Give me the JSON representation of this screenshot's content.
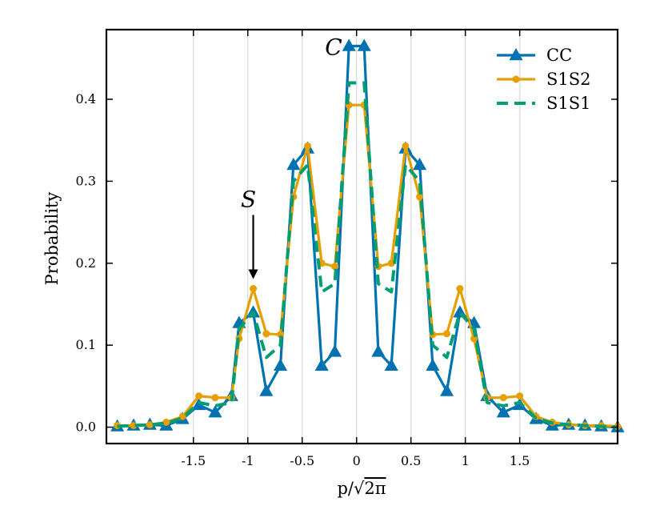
{
  "chart_data": {
    "type": "line",
    "title": "",
    "xlabel_parts": {
      "pre": "p/",
      "sqrt": "√",
      "radicand": "2π"
    },
    "ylabel": "Probability",
    "xlim": [
      -2.3,
      2.4
    ],
    "ylim": [
      -0.02,
      0.485
    ],
    "xticks": [
      -1.5,
      -1,
      -0.5,
      0,
      0.5,
      1,
      1.5
    ],
    "xtick_labels": [
      "-1.5",
      "-1",
      "-0.5",
      "0",
      "0.5",
      "1",
      "1.5"
    ],
    "yticks": [
      0.0,
      0.1,
      0.2,
      0.3,
      0.4
    ],
    "ytick_labels": [
      "0.0",
      "0.1",
      "0.2",
      "0.3",
      "0.4"
    ],
    "grid": "vertical-only",
    "legend_position": "top-right",
    "x": [
      -2.2,
      -2.05,
      -1.9,
      -1.75,
      -1.6,
      -1.45,
      -1.3,
      -1.15,
      -1.0,
      -0.95,
      -0.83,
      -0.7,
      -0.58,
      -0.45,
      -0.32,
      -0.2,
      -0.07,
      0.0,
      0.07,
      0.2,
      0.32,
      0.45,
      0.58,
      0.7,
      0.83,
      0.95,
      1.08,
      1.2,
      1.35,
      1.5,
      1.65,
      1.8,
      1.95,
      2.1,
      2.25,
      2.4
    ],
    "series": [
      {
        "name": "CC",
        "color": "#0072b2",
        "marker": "triangle",
        "dash": "solid",
        "x": [
          -2.2,
          -2.05,
          -1.9,
          -1.75,
          -1.6,
          -1.45,
          -1.3,
          -1.15,
          -1.08,
          -0.95,
          -0.83,
          -0.7,
          -0.58,
          -0.45,
          -0.32,
          -0.2,
          -0.07,
          0.07,
          0.2,
          0.32,
          0.45,
          0.58,
          0.7,
          0.83,
          0.95,
          1.08,
          1.2,
          1.35,
          1.5,
          1.65,
          1.8,
          1.95,
          2.1,
          2.25,
          2.4
        ],
        "values": [
          0.001,
          0.002,
          0.003,
          0.002,
          0.01,
          0.027,
          0.018,
          0.038,
          0.127,
          0.14,
          0.044,
          0.075,
          0.32,
          0.34,
          0.075,
          0.092,
          0.465,
          0.465,
          0.092,
          0.075,
          0.34,
          0.32,
          0.075,
          0.044,
          0.14,
          0.127,
          0.038,
          0.018,
          0.027,
          0.01,
          0.002,
          0.003,
          0.002,
          0.001,
          0.0
        ]
      },
      {
        "name": "S1S2",
        "color": "#e69f00",
        "marker": "circle",
        "dash": "solid",
        "x": [
          -2.2,
          -2.05,
          -1.9,
          -1.75,
          -1.6,
          -1.45,
          -1.3,
          -1.15,
          -1.08,
          -0.95,
          -0.83,
          -0.7,
          -0.58,
          -0.45,
          -0.32,
          -0.2,
          -0.07,
          0.07,
          0.2,
          0.32,
          0.45,
          0.58,
          0.7,
          0.83,
          0.95,
          1.08,
          1.2,
          1.35,
          1.5,
          1.65,
          1.8,
          1.95,
          2.1,
          2.25,
          2.4
        ],
        "values": [
          0.002,
          0.002,
          0.003,
          0.006,
          0.013,
          0.038,
          0.036,
          0.036,
          0.108,
          0.169,
          0.114,
          0.113,
          0.281,
          0.343,
          0.2,
          0.196,
          0.393,
          0.393,
          0.196,
          0.2,
          0.343,
          0.281,
          0.113,
          0.114,
          0.169,
          0.108,
          0.036,
          0.036,
          0.038,
          0.013,
          0.006,
          0.003,
          0.002,
          0.002,
          0.001
        ]
      },
      {
        "name": "S1S1",
        "color": "#009e73",
        "marker": "none",
        "dash": "dashed",
        "x": [
          -2.2,
          -2.05,
          -1.9,
          -1.75,
          -1.6,
          -1.45,
          -1.3,
          -1.15,
          -1.08,
          -0.95,
          -0.83,
          -0.7,
          -0.58,
          -0.45,
          -0.32,
          -0.2,
          -0.07,
          0.07,
          0.2,
          0.32,
          0.45,
          0.58,
          0.7,
          0.83,
          0.95,
          1.08,
          1.2,
          1.35,
          1.5,
          1.65,
          1.8,
          1.95,
          2.1,
          2.25,
          2.4
        ],
        "values": [
          0.001,
          0.002,
          0.003,
          0.005,
          0.011,
          0.03,
          0.026,
          0.03,
          0.12,
          0.14,
          0.085,
          0.1,
          0.3,
          0.32,
          0.165,
          0.175,
          0.42,
          0.42,
          0.175,
          0.165,
          0.32,
          0.3,
          0.1,
          0.085,
          0.14,
          0.12,
          0.03,
          0.026,
          0.03,
          0.011,
          0.005,
          0.003,
          0.002,
          0.001,
          0.0
        ]
      }
    ],
    "annotations": [
      {
        "text": "C",
        "x": 0.0,
        "y": 0.465,
        "kind": "label"
      },
      {
        "text": "S",
        "x": -0.95,
        "y": 0.169,
        "kind": "arrow"
      }
    ]
  }
}
